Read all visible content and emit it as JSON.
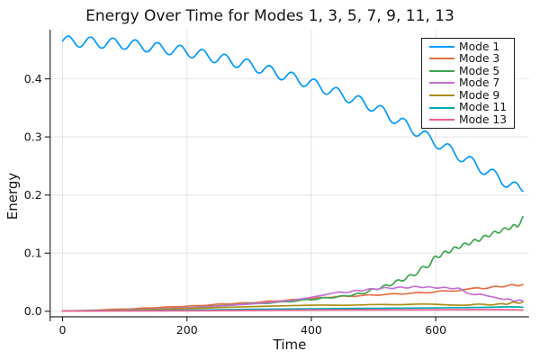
{
  "chart_data": {
    "type": "line",
    "title": "Energy Over Time for Modes 1, 3, 5, 7, 9, 11, 13",
    "xlabel": "Time",
    "ylabel": "Energy",
    "xlim": [
      -20,
      750
    ],
    "ylim": [
      -0.0095,
      0.4845
    ],
    "xticks": [
      0,
      200,
      400,
      600
    ],
    "xtick_labels": [
      "0",
      "200",
      "400",
      "600"
    ],
    "yticks": [
      0,
      0.1,
      0.2,
      0.3,
      0.4
    ],
    "ytick_labels": [
      "0.0",
      "0.1",
      "0.2",
      "0.3",
      "0.4"
    ],
    "grid": true,
    "grid_color": "#e4e4e4",
    "axis_color": "#2b2b2b",
    "text_color": "#141414",
    "background": "#ffffff",
    "legend": {
      "position": "top-right",
      "border_color": "#1a1a1a"
    },
    "series": [
      {
        "name": "Mode 1",
        "color": "#009AFA",
        "points": [
          [
            0,
            0.465
          ],
          [
            6,
            0.4738
          ],
          [
            12,
            0.4735
          ],
          [
            18,
            0.4641
          ],
          [
            24,
            0.4547
          ],
          [
            30,
            0.4544
          ],
          [
            36,
            0.4632
          ],
          [
            42,
            0.472
          ],
          [
            48,
            0.4717
          ],
          [
            54,
            0.4623
          ],
          [
            60,
            0.4529
          ],
          [
            66,
            0.4526
          ],
          [
            72,
            0.4614
          ],
          [
            78,
            0.4702
          ],
          [
            84,
            0.4699
          ],
          [
            90,
            0.4605
          ],
          [
            96,
            0.4511
          ],
          [
            102,
            0.4506
          ],
          [
            108,
            0.459
          ],
          [
            114,
            0.4673
          ],
          [
            120,
            0.4665
          ],
          [
            126,
            0.4566
          ],
          [
            132,
            0.4467
          ],
          [
            138,
            0.446
          ],
          [
            144,
            0.4543
          ],
          [
            150,
            0.4626
          ],
          [
            156,
            0.4618
          ],
          [
            162,
            0.4519
          ],
          [
            168,
            0.4421
          ],
          [
            174,
            0.4413
          ],
          [
            180,
            0.4496
          ],
          [
            186,
            0.4579
          ],
          [
            192,
            0.4571
          ],
          [
            198,
            0.4473
          ],
          [
            204,
            0.437
          ],
          [
            210,
            0.4356
          ],
          [
            216,
            0.4433
          ],
          [
            222,
            0.451
          ],
          [
            228,
            0.4497
          ],
          [
            234,
            0.4392
          ],
          [
            240,
            0.4287
          ],
          [
            246,
            0.4273
          ],
          [
            252,
            0.435
          ],
          [
            258,
            0.4428
          ],
          [
            264,
            0.4414
          ],
          [
            270,
            0.4309
          ],
          [
            276,
            0.4204
          ],
          [
            282,
            0.419
          ],
          [
            288,
            0.4268
          ],
          [
            294,
            0.4345
          ],
          [
            300,
            0.4331
          ],
          [
            306,
            0.4221
          ],
          [
            312,
            0.4111
          ],
          [
            318,
            0.4091
          ],
          [
            324,
            0.4163
          ],
          [
            330,
            0.4235
          ],
          [
            336,
            0.4216
          ],
          [
            342,
            0.4106
          ],
          [
            348,
            0.3995
          ],
          [
            354,
            0.3976
          ],
          [
            360,
            0.4048
          ],
          [
            366,
            0.412
          ],
          [
            372,
            0.4101
          ],
          [
            378,
            0.399
          ],
          [
            384,
            0.388
          ],
          [
            390,
            0.3861
          ],
          [
            396,
            0.3933
          ],
          [
            402,
            0.4003
          ],
          [
            408,
            0.3979
          ],
          [
            414,
            0.3864
          ],
          [
            420,
            0.3749
          ],
          [
            426,
            0.3725
          ],
          [
            432,
            0.3792
          ],
          [
            438,
            0.3859
          ],
          [
            444,
            0.3835
          ],
          [
            450,
            0.372
          ],
          [
            456,
            0.3605
          ],
          [
            462,
            0.3581
          ],
          [
            468,
            0.3648
          ],
          [
            474,
            0.3715
          ],
          [
            480,
            0.3691
          ],
          [
            486,
            0.3576
          ],
          [
            492,
            0.3461
          ],
          [
            498,
            0.3437
          ],
          [
            504,
            0.3496
          ],
          [
            510,
            0.355
          ],
          [
            516,
            0.3514
          ],
          [
            522,
            0.3386
          ],
          [
            528,
            0.3258
          ],
          [
            534,
            0.3222
          ],
          [
            540,
            0.3276
          ],
          [
            546,
            0.333
          ],
          [
            552,
            0.3294
          ],
          [
            558,
            0.3166
          ],
          [
            564,
            0.3039
          ],
          [
            570,
            0.3002
          ],
          [
            576,
            0.3056
          ],
          [
            582,
            0.3111
          ],
          [
            588,
            0.3074
          ],
          [
            594,
            0.2947
          ],
          [
            600,
            0.2819
          ],
          [
            606,
            0.2783
          ],
          [
            612,
            0.2837
          ],
          [
            618,
            0.2892
          ],
          [
            624,
            0.2855
          ],
          [
            630,
            0.2728
          ],
          [
            636,
            0.26
          ],
          [
            642,
            0.2564
          ],
          [
            648,
            0.2618
          ],
          [
            654,
            0.2673
          ],
          [
            660,
            0.2636
          ],
          [
            666,
            0.2509
          ],
          [
            672,
            0.2381
          ],
          [
            678,
            0.2345
          ],
          [
            684,
            0.2399
          ],
          [
            690,
            0.2454
          ],
          [
            696,
            0.2417
          ],
          [
            702,
            0.229
          ],
          [
            708,
            0.2162
          ],
          [
            714,
            0.2126
          ],
          [
            720,
            0.218
          ],
          [
            726,
            0.2235
          ],
          [
            732,
            0.2195
          ],
          [
            736,
            0.211
          ],
          [
            740,
            0.2065
          ]
        ]
      },
      {
        "name": "Mode 3",
        "color": "#E36F47",
        "points": [
          [
            0,
            0.0005
          ],
          [
            30,
            0.001
          ],
          [
            60,
            0.002
          ],
          [
            90,
            0.004
          ],
          [
            110,
            0.0035
          ],
          [
            130,
            0.006
          ],
          [
            150,
            0.0055
          ],
          [
            170,
            0.008
          ],
          [
            190,
            0.0075
          ],
          [
            210,
            0.01
          ],
          [
            230,
            0.0095
          ],
          [
            250,
            0.013
          ],
          [
            270,
            0.012
          ],
          [
            290,
            0.015
          ],
          [
            310,
            0.014
          ],
          [
            330,
            0.018
          ],
          [
            350,
            0.017
          ],
          [
            370,
            0.021
          ],
          [
            390,
            0.02
          ],
          [
            410,
            0.024
          ],
          [
            430,
            0.023
          ],
          [
            450,
            0.027
          ],
          [
            470,
            0.025
          ],
          [
            490,
            0.029
          ],
          [
            510,
            0.027
          ],
          [
            530,
            0.031
          ],
          [
            550,
            0.029
          ],
          [
            570,
            0.033
          ],
          [
            590,
            0.031
          ],
          [
            610,
            0.036
          ],
          [
            630,
            0.034
          ],
          [
            650,
            0.038
          ],
          [
            666,
            0.041
          ],
          [
            680,
            0.038
          ],
          [
            694,
            0.044
          ],
          [
            708,
            0.041
          ],
          [
            722,
            0.047
          ],
          [
            732,
            0.043
          ],
          [
            740,
            0.046
          ]
        ]
      },
      {
        "name": "Mode 5",
        "color": "#3EA44E",
        "points": [
          [
            0,
            0.0005
          ],
          [
            40,
            0.001
          ],
          [
            80,
            0.0015
          ],
          [
            120,
            0.003
          ],
          [
            160,
            0.004
          ],
          [
            200,
            0.006
          ],
          [
            230,
            0.008
          ],
          [
            260,
            0.01
          ],
          [
            290,
            0.012
          ],
          [
            310,
            0.0145
          ],
          [
            330,
            0.013
          ],
          [
            350,
            0.017
          ],
          [
            370,
            0.016
          ],
          [
            390,
            0.021
          ],
          [
            405,
            0.019
          ],
          [
            420,
            0.0245
          ],
          [
            435,
            0.022
          ],
          [
            450,
            0.028
          ],
          [
            462,
            0.025
          ],
          [
            474,
            0.032
          ],
          [
            486,
            0.029
          ],
          [
            498,
            0.04
          ],
          [
            508,
            0.036
          ],
          [
            518,
            0.047
          ],
          [
            528,
            0.042
          ],
          [
            538,
            0.056
          ],
          [
            548,
            0.05
          ],
          [
            558,
            0.065
          ],
          [
            568,
            0.059
          ],
          [
            578,
            0.08
          ],
          [
            588,
            0.072
          ],
          [
            598,
            0.098
          ],
          [
            606,
            0.09
          ],
          [
            614,
            0.106
          ],
          [
            622,
            0.098
          ],
          [
            630,
            0.113
          ],
          [
            638,
            0.106
          ],
          [
            646,
            0.12
          ],
          [
            654,
            0.112
          ],
          [
            662,
            0.126
          ],
          [
            670,
            0.118
          ],
          [
            678,
            0.133
          ],
          [
            686,
            0.126
          ],
          [
            694,
            0.14
          ],
          [
            702,
            0.132
          ],
          [
            710,
            0.146
          ],
          [
            718,
            0.138
          ],
          [
            726,
            0.152
          ],
          [
            732,
            0.142
          ],
          [
            740,
            0.163
          ]
        ]
      },
      {
        "name": "Mode 7",
        "color": "#C371D2",
        "points": [
          [
            0,
            0.0003
          ],
          [
            50,
            0.001
          ],
          [
            100,
            0.002
          ],
          [
            150,
            0.004
          ],
          [
            200,
            0.006
          ],
          [
            240,
            0.008
          ],
          [
            280,
            0.011
          ],
          [
            310,
            0.013
          ],
          [
            340,
            0.016
          ],
          [
            370,
            0.019
          ],
          [
            395,
            0.023
          ],
          [
            415,
            0.027
          ],
          [
            430,
            0.03
          ],
          [
            445,
            0.034
          ],
          [
            458,
            0.031
          ],
          [
            470,
            0.037
          ],
          [
            482,
            0.034
          ],
          [
            494,
            0.04
          ],
          [
            506,
            0.037
          ],
          [
            518,
            0.042
          ],
          [
            530,
            0.038
          ],
          [
            542,
            0.043
          ],
          [
            554,
            0.039
          ],
          [
            566,
            0.044
          ],
          [
            578,
            0.04
          ],
          [
            590,
            0.043
          ],
          [
            602,
            0.039
          ],
          [
            614,
            0.042
          ],
          [
            626,
            0.038
          ],
          [
            638,
            0.041
          ],
          [
            648,
            0.032
          ],
          [
            660,
            0.028
          ],
          [
            672,
            0.03
          ],
          [
            684,
            0.026
          ],
          [
            696,
            0.024
          ],
          [
            708,
            0.02
          ],
          [
            718,
            0.022
          ],
          [
            726,
            0.016
          ],
          [
            734,
            0.02
          ],
          [
            740,
            0.018
          ]
        ]
      },
      {
        "name": "Mode 9",
        "color": "#AC8E18",
        "points": [
          [
            0,
            0.0003
          ],
          [
            60,
            0.001
          ],
          [
            120,
            0.0025
          ],
          [
            180,
            0.004
          ],
          [
            240,
            0.006
          ],
          [
            300,
            0.008
          ],
          [
            340,
            0.009
          ],
          [
            380,
            0.01
          ],
          [
            420,
            0.011
          ],
          [
            460,
            0.01
          ],
          [
            500,
            0.012
          ],
          [
            540,
            0.011
          ],
          [
            580,
            0.013
          ],
          [
            620,
            0.011
          ],
          [
            650,
            0.01
          ],
          [
            670,
            0.013
          ],
          [
            690,
            0.01
          ],
          [
            705,
            0.014
          ],
          [
            715,
            0.011
          ],
          [
            725,
            0.017
          ],
          [
            733,
            0.013
          ],
          [
            740,
            0.016
          ]
        ]
      },
      {
        "name": "Mode 11",
        "color": "#00AAAE",
        "points": [
          [
            0,
            0.0003
          ],
          [
            80,
            0.001
          ],
          [
            160,
            0.0015
          ],
          [
            240,
            0.0025
          ],
          [
            320,
            0.0035
          ],
          [
            400,
            0.0045
          ],
          [
            480,
            0.005
          ],
          [
            560,
            0.0055
          ],
          [
            620,
            0.006
          ],
          [
            660,
            0.0065
          ],
          [
            700,
            0.007
          ],
          [
            720,
            0.008
          ],
          [
            740,
            0.007
          ]
        ]
      },
      {
        "name": "Mode 13",
        "color": "#ED5E92",
        "points": [
          [
            0,
            0.0002
          ],
          [
            100,
            0.0005
          ],
          [
            200,
            0.001
          ],
          [
            300,
            0.0015
          ],
          [
            400,
            0.002
          ],
          [
            500,
            0.0025
          ],
          [
            600,
            0.0025
          ],
          [
            680,
            0.003
          ],
          [
            740,
            0.0025
          ]
        ]
      }
    ]
  }
}
